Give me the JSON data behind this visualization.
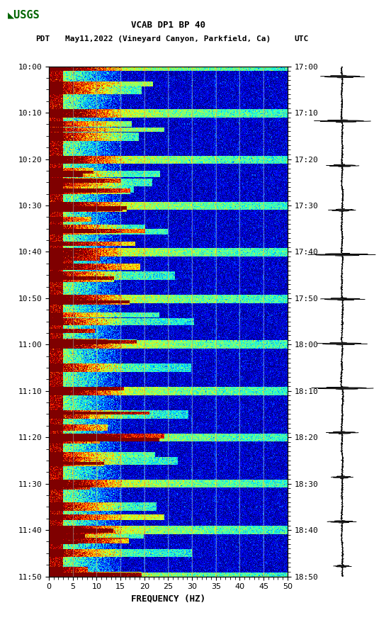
{
  "title_line1": "VCAB DP1 BP 40",
  "title_line2_left": "PDT",
  "title_line2_mid": "May11,2022 (Vineyard Canyon, Parkfield, Ca)",
  "title_line2_right": "UTC",
  "xlabel": "FREQUENCY (HZ)",
  "freq_min": 0,
  "freq_max": 50,
  "ytick_pdt": [
    "10:00",
    "10:10",
    "10:20",
    "10:30",
    "10:40",
    "10:50",
    "11:00",
    "11:10",
    "11:20",
    "11:30",
    "11:40",
    "11:50"
  ],
  "ytick_utc": [
    "17:00",
    "17:10",
    "17:20",
    "17:30",
    "17:40",
    "17:50",
    "18:00",
    "18:10",
    "18:20",
    "18:30",
    "18:40",
    "18:50"
  ],
  "xticks": [
    0,
    5,
    10,
    15,
    20,
    25,
    30,
    35,
    40,
    45,
    50
  ],
  "background_color": "#ffffff",
  "colormap": "jet",
  "n_time": 680,
  "n_freq": 400,
  "seed": 42,
  "vertical_lines_freq": [
    5,
    10,
    15,
    20,
    25,
    30,
    35,
    40,
    45
  ],
  "vline_color": "#a0a0a0",
  "logo_color": "#006400",
  "spectrogram_vmin": -1.5,
  "spectrogram_vmax": 3.0,
  "low_freq_cutoff": 3.0,
  "med_freq_cutoff": 15.0,
  "event_freq_cutoff": 20.0
}
